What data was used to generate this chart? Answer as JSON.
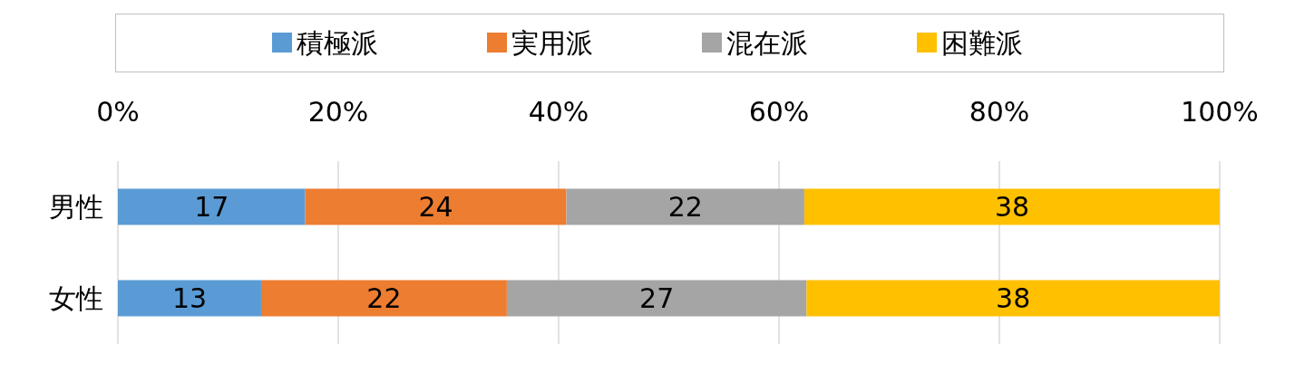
{
  "chart_data": {
    "type": "bar",
    "orientation": "horizontal",
    "stacked": true,
    "categories": [
      "男性",
      "女性"
    ],
    "series": [
      {
        "name": "積極派",
        "color": "#5b9bd5",
        "values": [
          17,
          13
        ],
        "value_labels": [
          "17",
          "13"
        ]
      },
      {
        "name": "実用派",
        "color": "#ed7d31",
        "values": [
          23.7,
          22.3
        ],
        "value_labels": [
          "24",
          "22"
        ]
      },
      {
        "name": "混在派",
        "color": "#a5a5a5",
        "values": [
          21.6,
          27.2
        ],
        "value_labels": [
          "22",
          "27"
        ]
      },
      {
        "name": "困難派",
        "color": "#ffc000",
        "values": [
          37.7,
          37.5
        ],
        "value_labels": [
          "38",
          "38"
        ]
      }
    ],
    "xlim": [
      0,
      100
    ],
    "xticks": [
      {
        "value": 0,
        "label": "0%"
      },
      {
        "value": 20,
        "label": "20%"
      },
      {
        "value": 40,
        "label": "40%"
      },
      {
        "value": 60,
        "label": "60%"
      },
      {
        "value": 80,
        "label": "80%"
      },
      {
        "value": 100,
        "label": "100%"
      }
    ],
    "grid": "x",
    "legend": "top"
  }
}
